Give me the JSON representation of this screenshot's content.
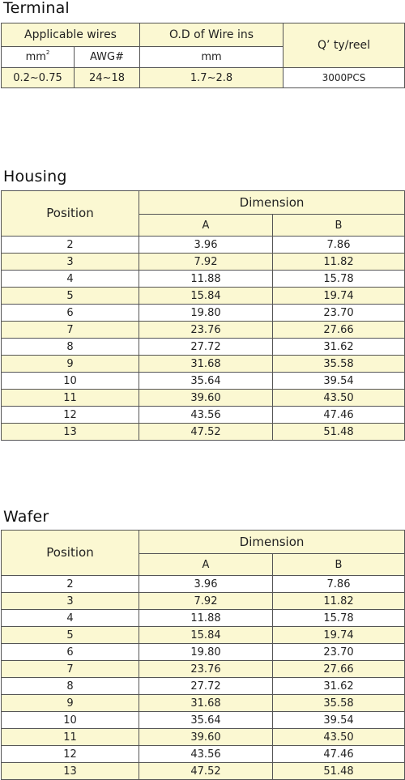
{
  "terminal": {
    "title": "Terminal",
    "applicable_wires": "Applicable wires",
    "od_wire_ins": "O.D of Wire ins",
    "qty_reel": "Q’ ty/reel",
    "mm2_unit": "mm",
    "mm2_sup": "2",
    "awg_label": "AWG#",
    "mm_label": "mm",
    "mm2_value": "0.2~0.75",
    "awg_value": "24~18",
    "od_value": "1.7~2.8",
    "qty_value": "3000PCS"
  },
  "housing": {
    "title": "Housing",
    "position_label": "Position",
    "dimension_label": "Dimension",
    "a_label": "A",
    "b_label": "B",
    "rows": [
      {
        "position": "2",
        "a": "3.96",
        "b": "7.86"
      },
      {
        "position": "3",
        "a": "7.92",
        "b": "11.82"
      },
      {
        "position": "4",
        "a": "11.88",
        "b": "15.78"
      },
      {
        "position": "5",
        "a": "15.84",
        "b": "19.74"
      },
      {
        "position": "6",
        "a": "19.80",
        "b": "23.70"
      },
      {
        "position": "7",
        "a": "23.76",
        "b": "27.66"
      },
      {
        "position": "8",
        "a": "27.72",
        "b": "31.62"
      },
      {
        "position": "9",
        "a": "31.68",
        "b": "35.58"
      },
      {
        "position": "10",
        "a": "35.64",
        "b": "39.54"
      },
      {
        "position": "11",
        "a": "39.60",
        "b": "43.50"
      },
      {
        "position": "12",
        "a": "43.56",
        "b": "47.46"
      },
      {
        "position": "13",
        "a": "47.52",
        "b": "51.48"
      }
    ]
  },
  "wafer": {
    "title": "Wafer",
    "position_label": "Position",
    "dimension_label": "Dimension",
    "a_label": "A",
    "b_label": "B",
    "rows": [
      {
        "position": "2",
        "a": "3.96",
        "b": "7.86"
      },
      {
        "position": "3",
        "a": "7.92",
        "b": "11.82"
      },
      {
        "position": "4",
        "a": "11.88",
        "b": "15.78"
      },
      {
        "position": "5",
        "a": "15.84",
        "b": "19.74"
      },
      {
        "position": "6",
        "a": "19.80",
        "b": "23.70"
      },
      {
        "position": "7",
        "a": "23.76",
        "b": "27.66"
      },
      {
        "position": "8",
        "a": "27.72",
        "b": "31.62"
      },
      {
        "position": "9",
        "a": "31.68",
        "b": "35.58"
      },
      {
        "position": "10",
        "a": "35.64",
        "b": "39.54"
      },
      {
        "position": "11",
        "a": "39.60",
        "b": "43.50"
      },
      {
        "position": "12",
        "a": "43.56",
        "b": "47.46"
      },
      {
        "position": "13",
        "a": "47.52",
        "b": "51.48"
      }
    ]
  },
  "colors": {
    "header_fill": "#fbf8d2",
    "border": "#555555"
  }
}
